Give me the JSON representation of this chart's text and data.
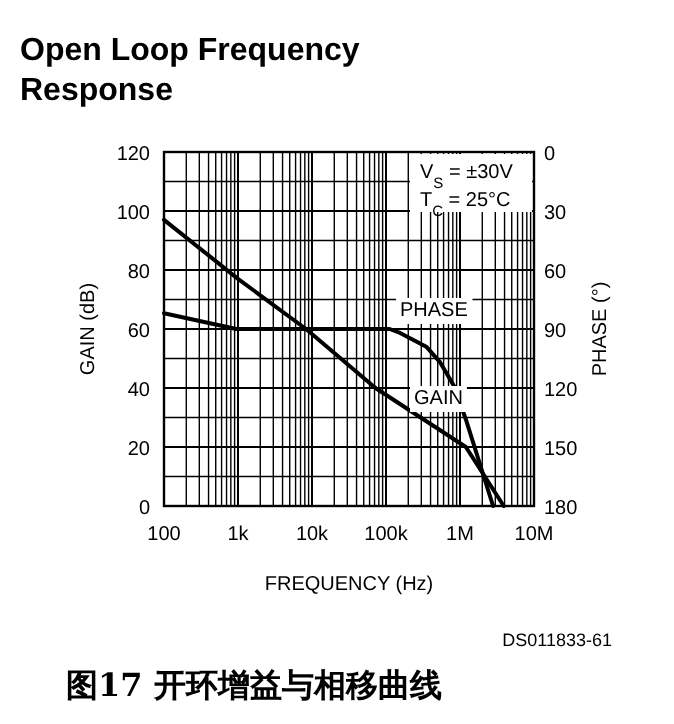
{
  "chart_data": {
    "type": "line",
    "title": "Open Loop Frequency Response",
    "xlabel": "FREQUENCY (Hz)",
    "ylabel": "GAIN (dB)",
    "y2label": "PHASE (°)",
    "log": "x",
    "grid": true,
    "marker": "none",
    "line_style": "solid",
    "xlim": [
      100,
      10000000
    ],
    "xticks": [
      {
        "value": 100,
        "label": "100"
      },
      {
        "value": 1000,
        "label": "1k"
      },
      {
        "value": 10000,
        "label": "10k"
      },
      {
        "value": 100000,
        "label": "100k"
      },
      {
        "value": 1000000,
        "label": "1M"
      },
      {
        "value": 10000000,
        "label": "10M"
      }
    ],
    "ylim": [
      0,
      120
    ],
    "yticks": [
      0,
      20,
      40,
      60,
      80,
      100,
      120
    ],
    "y2lim": [
      180,
      0
    ],
    "y2ticks": [
      0,
      30,
      60,
      90,
      120,
      150,
      180
    ],
    "annotations": [
      "V$_{S}$ = ±30V",
      "T$_{C}$ = 25°C",
      "DS011833-61",
      "图17 开环增益与相移曲线"
    ],
    "series": [
      {
        "name": "GAIN",
        "color": "#000000",
        "x": [
          100,
          1000,
          8300,
          72000,
          1200000,
          3900000
        ],
        "values": [
          97,
          77,
          60,
          40,
          20,
          0
        ]
      },
      {
        "name": "PHASE",
        "axis": "y2",
        "color": "#000000",
        "x": [
          100,
          950,
          112000,
          155000,
          350000,
          540000,
          830000,
          1200000,
          2800000
        ],
        "values": [
          82,
          90,
          90,
          92,
          99,
          107,
          119,
          136,
          180
        ]
      }
    ]
  }
}
